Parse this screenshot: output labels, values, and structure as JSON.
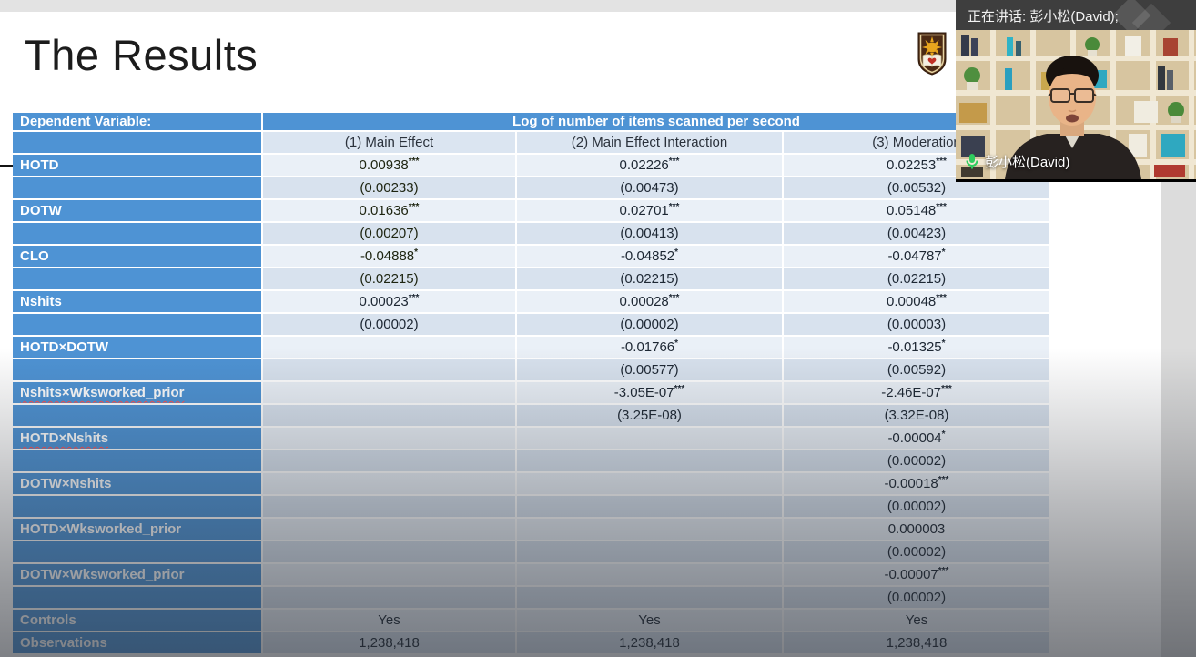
{
  "meeting": {
    "speaking_banner": "正在讲话: 彭小松(David);",
    "participant_name": "彭小松(David)",
    "mic_color": "#2ecc5e"
  },
  "slide": {
    "title": "The Results",
    "logo": "university-crest"
  },
  "table": {
    "dependent_variable_label": "Dependent Variable:",
    "dependent_variable_value": "Log of number of items scanned per second",
    "col_headers": [
      "(1) Main Effect",
      "(2) Main Effect Interaction",
      "(3) Moderation"
    ],
    "header_blue": "#4e93d4",
    "highlight_green": "#8cc644",
    "rows": [
      {
        "label": "HOTD",
        "green": true,
        "cells": [
          [
            "0.00938",
            "***"
          ],
          [
            "0.02226",
            "***"
          ],
          [
            "0.02253",
            "***"
          ]
        ]
      },
      {
        "label": "",
        "green": true,
        "cells": [
          [
            "(0.00233)"
          ],
          [
            "(0.00473)"
          ],
          [
            "(0.00532)"
          ]
        ]
      },
      {
        "label": "DOTW",
        "green": true,
        "cells": [
          [
            "0.01636",
            "***"
          ],
          [
            "0.02701",
            "***"
          ],
          [
            "0.05148",
            "***"
          ]
        ]
      },
      {
        "label": "",
        "green": true,
        "cells": [
          [
            "(0.00207)"
          ],
          [
            "(0.00413)"
          ],
          [
            "(0.00423)"
          ]
        ]
      },
      {
        "label": "CLO",
        "green": true,
        "cells": [
          [
            "-0.04888",
            "*"
          ],
          [
            "-0.04852",
            "*"
          ],
          [
            "-0.04787",
            "*"
          ]
        ]
      },
      {
        "label": "",
        "green": true,
        "cells": [
          [
            "(0.02215)"
          ],
          [
            "(0.02215)"
          ],
          [
            "(0.02215)"
          ]
        ]
      },
      {
        "label": "Nshits",
        "cells": [
          [
            "0.00023",
            "***"
          ],
          [
            "0.00028",
            "***"
          ],
          [
            "0.00048",
            "***"
          ]
        ]
      },
      {
        "label": "",
        "cells": [
          [
            "(0.00002)"
          ],
          [
            "(0.00002)"
          ],
          [
            "(0.00003)"
          ]
        ]
      },
      {
        "label": "HOTD×DOTW",
        "cells": [
          null,
          [
            "-0.01766",
            "*"
          ],
          [
            "-0.01325",
            "*"
          ]
        ]
      },
      {
        "label": "",
        "cells": [
          null,
          [
            "(0.00577)"
          ],
          [
            "(0.00592)"
          ]
        ]
      },
      {
        "label": "Nshits×Wksworked_prior",
        "squiggle": true,
        "cells": [
          null,
          [
            "-3.05E-07",
            "***"
          ],
          [
            "-2.46E-07",
            "***"
          ]
        ]
      },
      {
        "label": "",
        "cells": [
          null,
          [
            "(3.25E-08)"
          ],
          [
            "(3.32E-08)"
          ]
        ]
      },
      {
        "label": "HOTD×Nshits",
        "squiggle": true,
        "cells": [
          null,
          null,
          [
            "-0.00004",
            "*"
          ]
        ]
      },
      {
        "label": "",
        "cells": [
          null,
          null,
          [
            "(0.00002)"
          ]
        ]
      },
      {
        "label": "DOTW×Nshits",
        "cells": [
          null,
          null,
          [
            "-0.00018",
            "***"
          ]
        ]
      },
      {
        "label": "",
        "cells": [
          null,
          null,
          [
            "(0.00002)"
          ]
        ]
      },
      {
        "label": "HOTD×Wksworked_prior",
        "cells": [
          null,
          null,
          [
            "0.000003"
          ]
        ]
      },
      {
        "label": "",
        "cells": [
          null,
          null,
          [
            "(0.00002)"
          ]
        ]
      },
      {
        "label": "DOTW×Wksworked_prior",
        "cells": [
          null,
          null,
          [
            "-0.00007",
            "***"
          ]
        ]
      },
      {
        "label": "",
        "cells": [
          null,
          null,
          [
            "(0.00002)"
          ]
        ]
      },
      {
        "label": "Controls",
        "cells": [
          [
            "Yes"
          ],
          [
            "Yes"
          ],
          [
            "Yes"
          ]
        ]
      },
      {
        "label": "Observations",
        "cells": [
          [
            "1,238,418"
          ],
          [
            "1,238,418"
          ],
          [
            "1,238,418"
          ]
        ]
      }
    ]
  }
}
